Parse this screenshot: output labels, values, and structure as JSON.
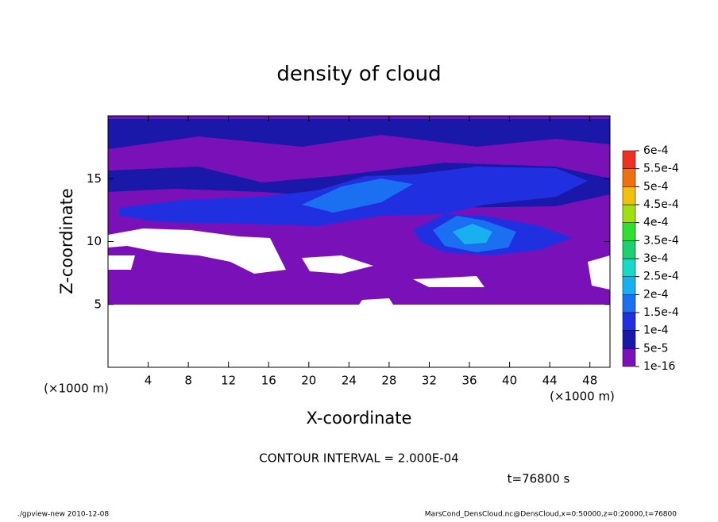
{
  "chart_data": {
    "type": "contour",
    "title": "density of cloud",
    "x_label": "X-coordinate",
    "y_label": "Z-coordinate",
    "x_unit_label": "(×1000 m)",
    "y_unit_label": "(×1000 m)",
    "xlim": [
      0,
      50
    ],
    "ylim": [
      0,
      20
    ],
    "xticks": [
      4,
      8,
      12,
      16,
      20,
      24,
      28,
      32,
      36,
      40,
      44,
      48
    ],
    "yticks": [
      5,
      10,
      15
    ],
    "levels": [
      {
        "value": 1e-16,
        "label": "1e-16"
      },
      {
        "value": 5e-05,
        "label": "5e-5"
      },
      {
        "value": 0.0001,
        "label": "1e-4"
      },
      {
        "value": 0.00015,
        "label": "1.5e-4"
      },
      {
        "value": 0.0002,
        "label": "2e-4"
      },
      {
        "value": 0.00025,
        "label": "2.5e-4"
      },
      {
        "value": 0.0003,
        "label": "3e-4"
      },
      {
        "value": 0.00035,
        "label": "3.5e-4"
      },
      {
        "value": 0.0004,
        "label": "4e-4"
      },
      {
        "value": 0.00045,
        "label": "4.5e-4"
      },
      {
        "value": 0.0005,
        "label": "5e-4"
      },
      {
        "value": 0.00055,
        "label": "5.5e-4"
      },
      {
        "value": 0.0006,
        "label": "6e-4"
      }
    ],
    "colors": [
      "#7a10b8",
      "#1a18a8",
      "#2030e0",
      "#1a70f0",
      "#18b0f0",
      "#18d8c8",
      "#20d070",
      "#30e030",
      "#a0e010",
      "#f0c010",
      "#f07010",
      "#f03020",
      "#f08888"
    ],
    "contour_interval": "CONTOUR INTERVAL = 2.000E-04",
    "time_label": "t=76800 s",
    "footer_left": "./gpview-new   2010-12-08",
    "footer_right": "MarsCond_DensCloud.nc@DensCloud,x=0:50000,z=0:20000,t=76800"
  }
}
